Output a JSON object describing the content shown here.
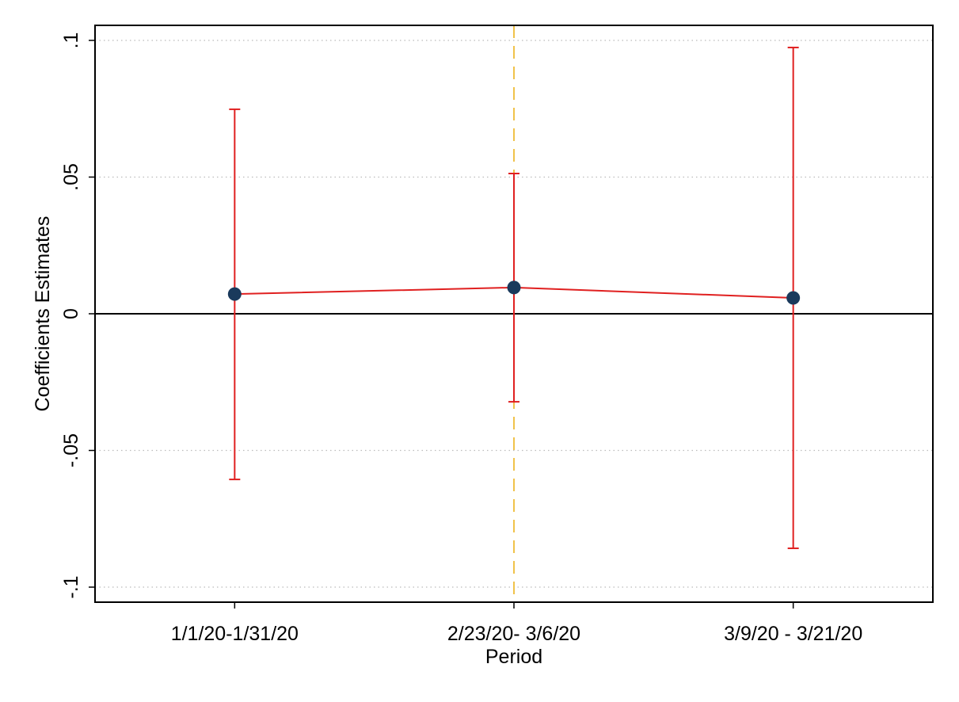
{
  "chart_data": {
    "type": "errorbar_line",
    "x_label": "Period",
    "y_label": "Coefficients Estimates",
    "categories": [
      "1/1/20-1/31/20",
      "2/23/20- 3/6/20",
      "3/9/20 - 3/21/20"
    ],
    "values": [
      0.0072,
      0.0096,
      0.0058
    ],
    "ci_lower": [
      -0.0606,
      -0.0322,
      -0.0858
    ],
    "ci_upper": [
      0.0748,
      0.0513,
      0.0974
    ],
    "line_color": "#e02020",
    "marker_color": "#1a3a5c",
    "ylim": [
      -0.1055,
      0.1055
    ],
    "yticks": [
      {
        "value": 0.1,
        "label": ".1"
      },
      {
        "value": 0.05,
        "label": ".05"
      },
      0,
      {
        "value": -0.05,
        "label": "-.05"
      },
      {
        "value": -0.1,
        "label": "-.1"
      }
    ],
    "grid": true,
    "hline": 0,
    "vline_category_index": 1,
    "vline_color": "#f0c24a"
  }
}
